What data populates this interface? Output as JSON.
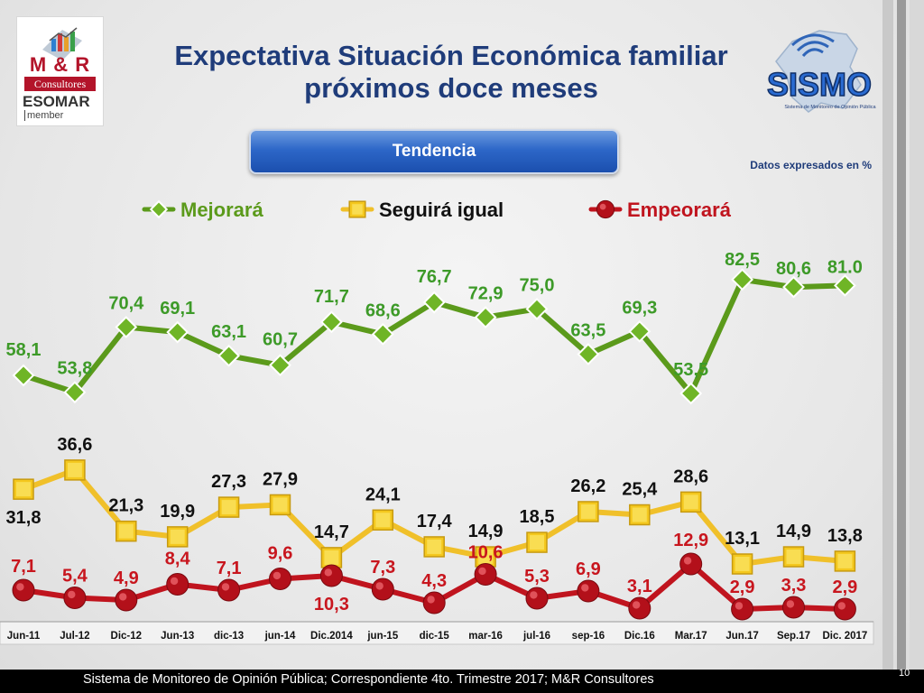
{
  "title_line1": "Expectativa Situación Económica familiar",
  "title_line2": "próximos doce meses",
  "button_label": "Tendencia",
  "units_note": "Datos expresados en %",
  "logo_left": {
    "brand": "M & R",
    "subtitle": "Consultores",
    "esomar": "ESOMAR",
    "member": "member"
  },
  "logo_right": {
    "name": "SISMO",
    "tagline": "Sistema de Monitoreo de Opinión Pública"
  },
  "footer": "Sistema de Monitoreo de Opinión Pública; Correspondiente 4to. Trimestre 2017; M&R Consultores",
  "page_number": "10",
  "colors": {
    "mejorara": "#5b9a1b",
    "mejorara_label": "#3d9a28",
    "seguira": "#f0c02a",
    "seguira_label": "#111111",
    "empeorara": "#c0141e",
    "empeorara_label": "#c8161e",
    "title": "#1f3c7a"
  },
  "chart_data": {
    "type": "line",
    "categories": [
      "Jun-11",
      "Jul-12",
      "Dic-12",
      "Jun-13",
      "dic-13",
      "jun-14",
      "Dic.2014",
      "jun-15",
      "dic-15",
      "mar-16",
      "jul-16",
      "sep-16",
      "Dic.16",
      "Mar.17",
      "Jun.17",
      "Sep.17",
      "Dic. 2017"
    ],
    "legend_position": "top",
    "grid": false,
    "series": [
      {
        "name": "Mejorará",
        "values": [
          58.1,
          53.8,
          70.4,
          69.1,
          63.1,
          60.7,
          71.7,
          68.6,
          76.7,
          72.9,
          75.0,
          63.5,
          69.3,
          53.5,
          82.5,
          80.6,
          81.0
        ],
        "labels": [
          "58,1",
          "53,8",
          "70,4",
          "69,1",
          "63,1",
          "60,7",
          "71,7",
          "68,6",
          "76,7",
          "72,9",
          "75,0",
          "63,5",
          "69,3",
          "53,5",
          "82,5",
          "80,6",
          "81.0"
        ],
        "marker": "diamond"
      },
      {
        "name": "Seguirá igual",
        "values": [
          31.8,
          36.6,
          21.3,
          19.9,
          27.3,
          27.9,
          14.7,
          24.1,
          17.4,
          14.9,
          18.5,
          26.2,
          25.4,
          28.6,
          13.1,
          14.9,
          13.8
        ],
        "labels": [
          "31,8",
          "36,6",
          "21,3",
          "19,9",
          "27,3",
          "27,9",
          "14,7",
          "24,1",
          "17,4",
          "14,9",
          "18,5",
          "26,2",
          "25,4",
          "28,6",
          "13,1",
          "14,9",
          "13,8"
        ],
        "marker": "square"
      },
      {
        "name": "Empeorará",
        "values": [
          7.1,
          5.4,
          4.9,
          8.4,
          7.1,
          9.6,
          10.3,
          7.3,
          4.3,
          10.6,
          5.3,
          6.9,
          3.1,
          12.9,
          2.9,
          3.3,
          2.9
        ],
        "labels": [
          "7,1",
          "5,4",
          "4,9",
          "8,4",
          "7,1",
          "9,6",
          "10,3",
          "7,3",
          "4,3",
          "10,6",
          "5,3",
          "6,9",
          "3,1",
          "12,9",
          "2,9",
          "3,3",
          "2,9"
        ],
        "marker": "circle"
      }
    ]
  }
}
